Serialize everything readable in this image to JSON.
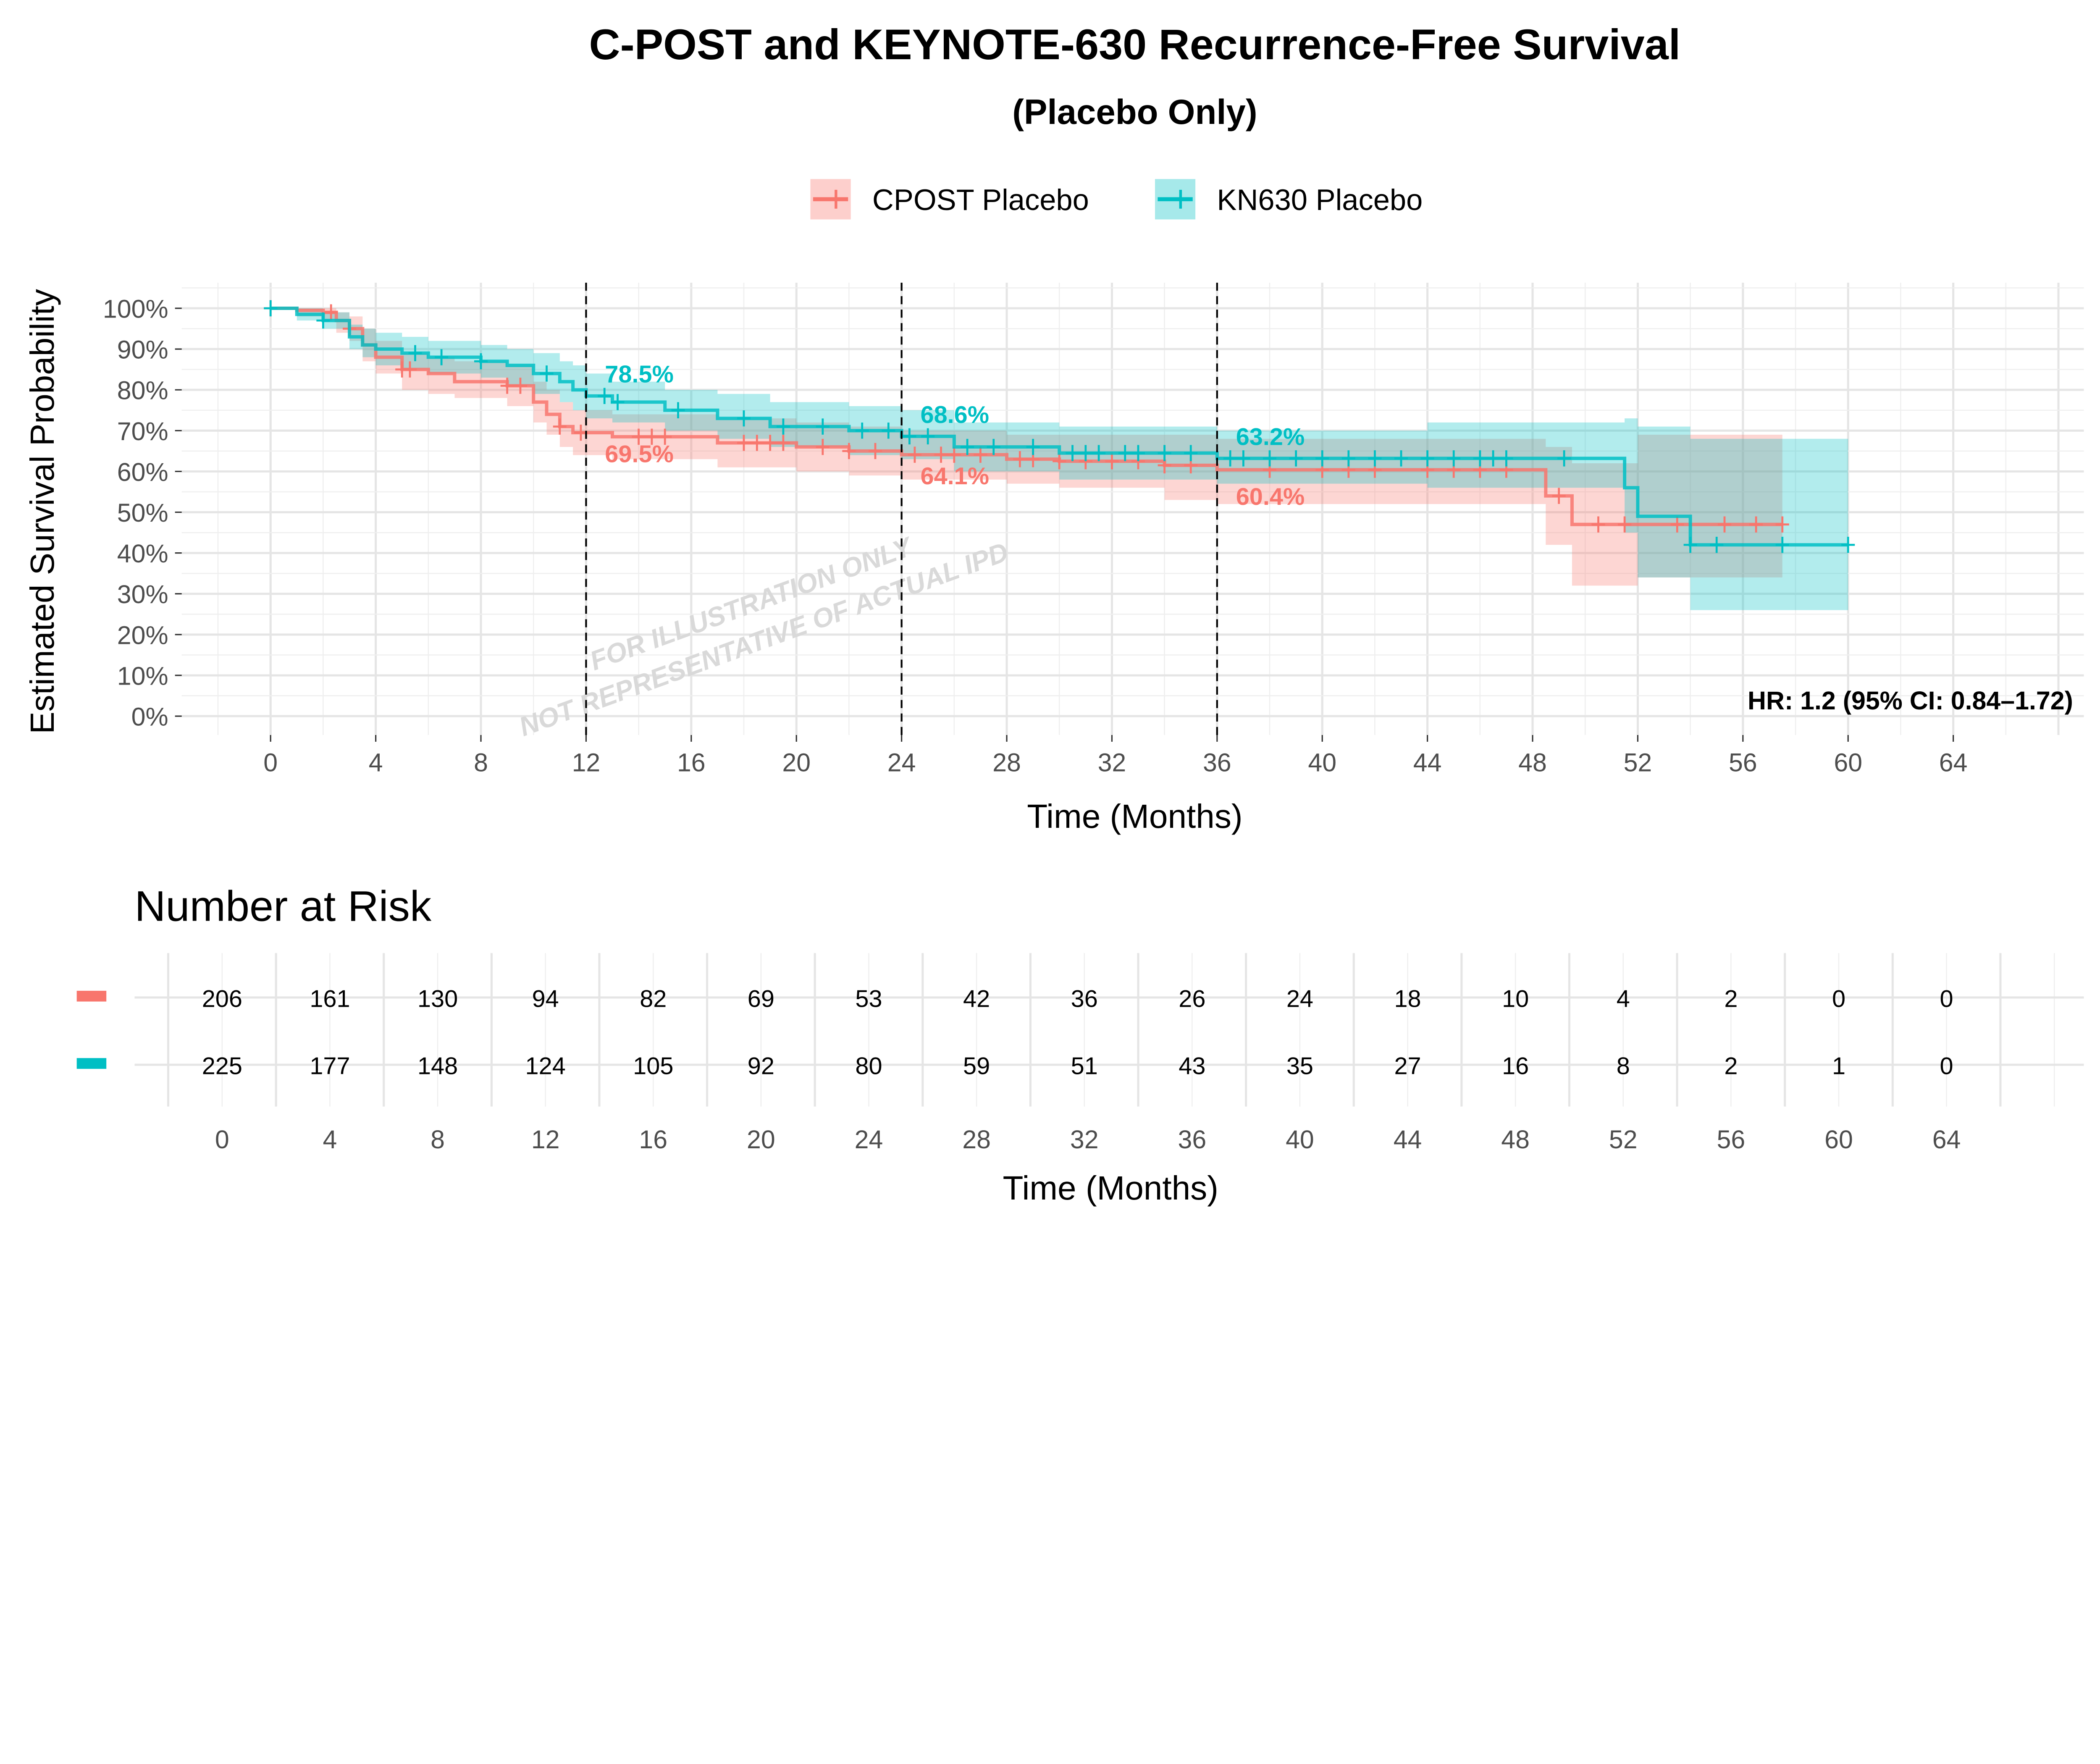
{
  "chart_data": {
    "type": "line",
    "subtype": "kaplan-meier step",
    "title": "C-POST and KEYNOTE-630 Recurrence-Free Survival",
    "subtitle": "(Placebo Only)",
    "xlabel": "Time (Months)",
    "ylabel": "Estimated Survival Probability",
    "xlim": [
      0,
      64
    ],
    "ylim": [
      0,
      100
    ],
    "x_ticks": [
      0,
      4,
      8,
      12,
      16,
      20,
      24,
      28,
      32,
      36,
      40,
      44,
      48,
      52,
      56,
      60,
      64
    ],
    "y_ticks": [
      "0%",
      "10%",
      "20%",
      "30%",
      "40%",
      "50%",
      "60%",
      "70%",
      "80%",
      "90%",
      "100%"
    ],
    "grid": true,
    "legend_position": "top",
    "reference_lines_x": [
      12,
      24,
      36
    ],
    "series": [
      {
        "name": "CPOST Placebo",
        "color": "#F8766D",
        "steps": [
          [
            0,
            100,
            100,
            100
          ],
          [
            1,
            99.5,
            98,
            100
          ],
          [
            2,
            99,
            97,
            100
          ],
          [
            2.5,
            97,
            94,
            99
          ],
          [
            3,
            95,
            92,
            98
          ],
          [
            3.5,
            91,
            87,
            95
          ],
          [
            4,
            88,
            84,
            92
          ],
          [
            5,
            85,
            80,
            89
          ],
          [
            6,
            84,
            79,
            88
          ],
          [
            7,
            82,
            78,
            87
          ],
          [
            9,
            81,
            76,
            86
          ],
          [
            10,
            77,
            72,
            82
          ],
          [
            10.5,
            74,
            69,
            80
          ],
          [
            11,
            71,
            66,
            77
          ],
          [
            11.5,
            69.5,
            64,
            75
          ],
          [
            13,
            68.5,
            63,
            74
          ],
          [
            17,
            67,
            61,
            73
          ],
          [
            20,
            66,
            60,
            72
          ],
          [
            22,
            65,
            59,
            71
          ],
          [
            24,
            64.1,
            58,
            70
          ],
          [
            28,
            63,
            57,
            69
          ],
          [
            30,
            62.5,
            56,
            69
          ],
          [
            34,
            61.5,
            53,
            69
          ],
          [
            36,
            60.4,
            52,
            68
          ],
          [
            48.5,
            54,
            42,
            66
          ],
          [
            49.5,
            47,
            32,
            62
          ],
          [
            52,
            47,
            34,
            69
          ],
          [
            57.5,
            47,
            34,
            69
          ]
        ],
        "censor_times": [
          0,
          2.3,
          3,
          5,
          5.3,
          9,
          9.5,
          11,
          11.8,
          14,
          14.5,
          15,
          18,
          18.5,
          19,
          19.5,
          21,
          22,
          23,
          24.5,
          25.5,
          26,
          27,
          28.5,
          29,
          30,
          31,
          32,
          33,
          34,
          35,
          38,
          40,
          41,
          42,
          44,
          45,
          46,
          47,
          49,
          50.5,
          51.5,
          53.5,
          55.3,
          56.5,
          57.5
        ],
        "labels": [
          {
            "t": 12,
            "text": "69.5%"
          },
          {
            "t": 24,
            "text": "64.1%"
          },
          {
            "t": 36,
            "text": "60.4%"
          }
        ]
      },
      {
        "name": "KN630 Placebo",
        "color": "#00BFC4",
        "steps": [
          [
            0,
            100,
            100,
            100
          ],
          [
            1,
            98.5,
            97,
            100
          ],
          [
            2,
            97,
            95,
            99
          ],
          [
            3,
            93,
            90,
            96
          ],
          [
            3.5,
            91,
            88,
            95
          ],
          [
            4,
            90,
            86,
            94
          ],
          [
            5,
            89,
            85,
            93
          ],
          [
            6,
            88,
            84,
            92
          ],
          [
            8,
            87,
            83,
            91
          ],
          [
            9,
            86,
            81,
            90
          ],
          [
            10,
            84,
            79,
            89
          ],
          [
            11,
            82,
            77,
            87
          ],
          [
            11.5,
            80,
            75,
            86
          ],
          [
            12,
            78.5,
            73,
            84
          ],
          [
            13,
            77,
            72,
            82
          ],
          [
            15,
            75,
            70,
            80
          ],
          [
            17,
            73,
            68,
            79
          ],
          [
            19,
            71,
            66,
            77
          ],
          [
            22,
            70,
            64,
            76
          ],
          [
            24,
            68.6,
            63,
            75
          ],
          [
            26,
            66,
            60,
            72
          ],
          [
            30,
            64.5,
            58,
            71
          ],
          [
            36,
            63.2,
            57,
            70
          ],
          [
            44,
            63.2,
            56,
            72
          ],
          [
            51.5,
            56,
            45,
            73
          ],
          [
            52,
            49,
            34,
            71
          ],
          [
            54,
            42,
            26,
            68
          ],
          [
            60,
            42,
            26,
            68
          ]
        ],
        "censor_times": [
          0,
          2,
          5.5,
          6.5,
          8,
          10.5,
          12.7,
          13.2,
          15.5,
          18,
          19.5,
          21,
          22.5,
          23.5,
          24.3,
          25,
          26.5,
          27.5,
          29,
          30.5,
          31,
          31.5,
          32.5,
          33,
          34,
          35,
          36.5,
          37,
          38,
          39,
          40,
          41,
          42,
          43,
          44,
          45,
          46,
          46.5,
          47,
          49.2,
          54,
          55,
          57.5,
          60
        ],
        "labels": [
          {
            "t": 12,
            "text": "78.5%"
          },
          {
            "t": 24,
            "text": "68.6%"
          },
          {
            "t": 36,
            "text": "63.2%"
          }
        ]
      }
    ],
    "annotation": "HR: 1.2 (95% CI: 0.84–1.72)",
    "watermark": [
      "FOR ILLUSTRATION ONLY",
      "NOT REPRESENTATIVE OF ACTUAL IPD"
    ]
  },
  "risk_table": {
    "title": "Number at Risk",
    "xlabel": "Time (Months)",
    "times": [
      0,
      4,
      8,
      12,
      16,
      20,
      24,
      28,
      32,
      36,
      40,
      44,
      48,
      52,
      56,
      60,
      64
    ],
    "rows": [
      {
        "color": "#F8766D",
        "values": [
          206,
          161,
          130,
          94,
          82,
          69,
          53,
          42,
          36,
          26,
          24,
          18,
          10,
          4,
          2,
          0,
          0
        ]
      },
      {
        "color": "#00BFC4",
        "values": [
          225,
          177,
          148,
          124,
          105,
          92,
          80,
          59,
          51,
          43,
          35,
          27,
          16,
          8,
          2,
          1,
          0
        ]
      }
    ]
  }
}
